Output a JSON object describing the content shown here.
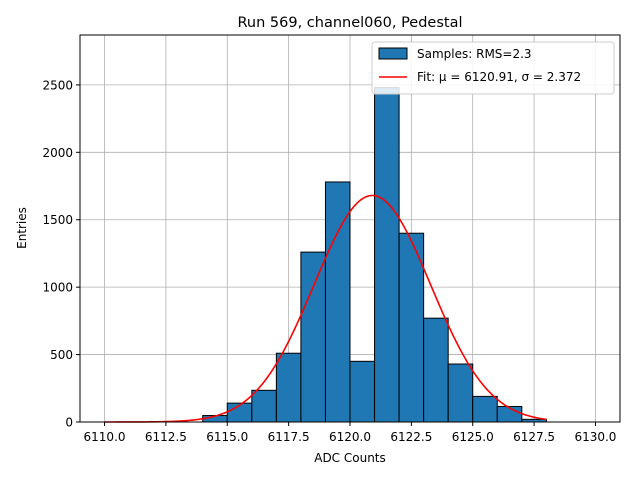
{
  "chart_data": {
    "type": "bar",
    "title": "Run 569, channel060, Pedestal",
    "xlabel": "ADC Counts",
    "ylabel": "Entries",
    "xlim": [
      6109.0,
      6131.0
    ],
    "ylim": [
      0,
      2870
    ],
    "xticks": [
      6110.0,
      6112.5,
      6115.0,
      6117.5,
      6120.0,
      6122.5,
      6125.0,
      6127.5,
      6130.0
    ],
    "xtick_labels": [
      "6110.0",
      "6112.5",
      "6115.0",
      "6117.5",
      "6120.0",
      "6122.5",
      "6125.0",
      "6127.5",
      "6130.0"
    ],
    "yticks": [
      0,
      500,
      1000,
      1500,
      2000,
      2500
    ],
    "ytick_labels": [
      "0",
      "500",
      "1000",
      "1500",
      "2000",
      "2500"
    ],
    "grid": true,
    "legend_position": "top-right",
    "histogram": {
      "name": "Samples: RMS=2.3",
      "color": "#1f77b4",
      "bin_width": 1,
      "bin_starts": [
        6114,
        6115,
        6116,
        6117,
        6118,
        6119,
        6120,
        6121,
        6122,
        6123,
        6124,
        6125,
        6126,
        6127
      ],
      "counts": [
        48,
        140,
        235,
        510,
        1260,
        1780,
        450,
        2480,
        1400,
        770,
        430,
        190,
        115,
        20
      ]
    },
    "fit": {
      "name": "Fit: μ = 6120.91, σ = 2.372",
      "color": "#ff0000",
      "mu": 6120.91,
      "sigma": 2.372,
      "amplitude": 1680,
      "x_range": [
        6110,
        6128
      ]
    }
  }
}
